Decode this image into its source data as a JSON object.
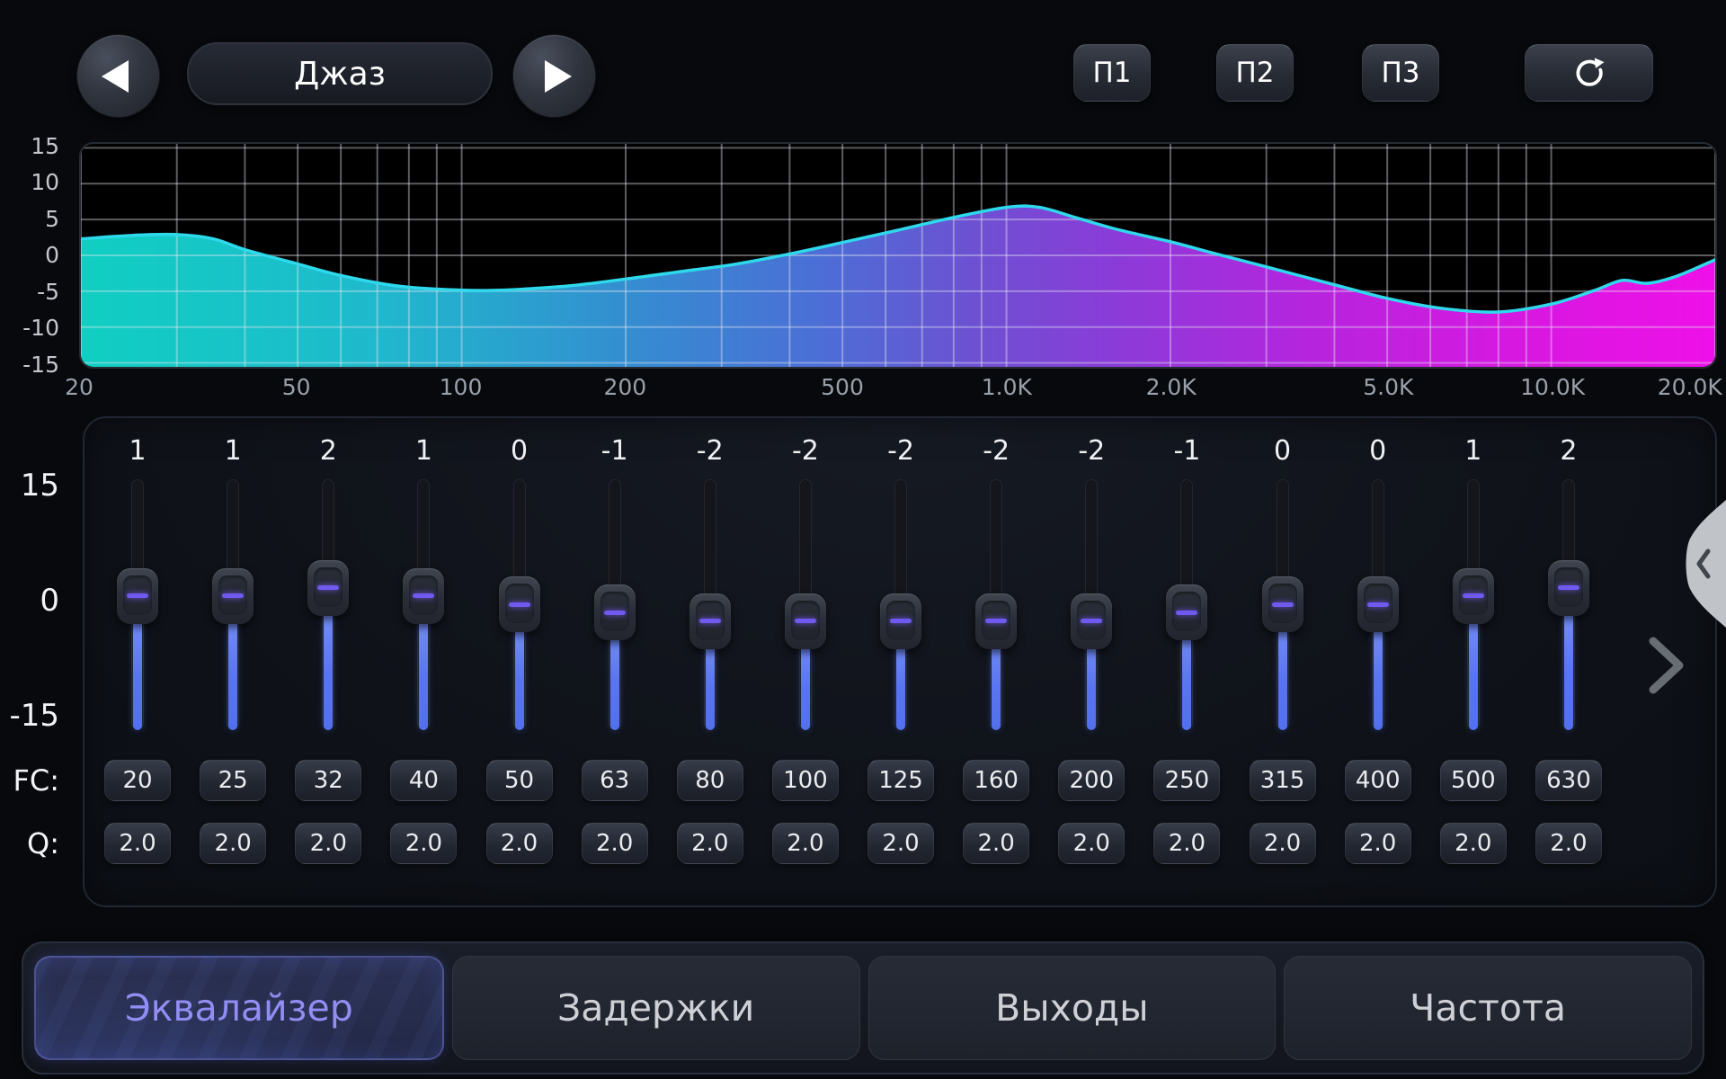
{
  "header": {
    "preset_label": "Джаз",
    "prev_button": {
      "icon": "left-triangle-icon"
    },
    "next_button": {
      "icon": "right-triangle-icon"
    },
    "memory_buttons": [
      {
        "label": "П1"
      },
      {
        "label": "П2"
      },
      {
        "label": "П3"
      }
    ],
    "reset_button": {
      "icon": "reset-arrow-icon"
    }
  },
  "chart_data": {
    "type": "area",
    "title": "",
    "x_scale": "log",
    "xlim": [
      20,
      20000
    ],
    "ylim": [
      -15,
      15
    ],
    "grid": true,
    "y_ticks": [
      {
        "value": 15,
        "label": "15"
      },
      {
        "value": 10,
        "label": "10"
      },
      {
        "value": 5,
        "label": "5"
      },
      {
        "value": 0,
        "label": "0"
      },
      {
        "value": -5,
        "label": "-5"
      },
      {
        "value": -10,
        "label": "-10"
      },
      {
        "value": -15,
        "label": "-15"
      }
    ],
    "x_ticks": [
      {
        "f": 20,
        "label": "20"
      },
      {
        "f": 50,
        "label": "50"
      },
      {
        "f": 100,
        "label": "100"
      },
      {
        "f": 200,
        "label": "200"
      },
      {
        "f": 500,
        "label": "500"
      },
      {
        "f": 1000,
        "label": "1.0K"
      },
      {
        "f": 2000,
        "label": "2.0K"
      },
      {
        "f": 5000,
        "label": "5.0K"
      },
      {
        "f": 10000,
        "label": "10.0K"
      },
      {
        "f": 20000,
        "label": "20.0K"
      }
    ],
    "minor_gridlines": [
      20,
      30,
      40,
      50,
      60,
      70,
      80,
      90,
      100,
      200,
      300,
      400,
      500,
      600,
      700,
      800,
      900,
      1000,
      2000,
      3000,
      4000,
      5000,
      6000,
      7000,
      8000,
      9000,
      10000,
      20000
    ],
    "curve_db_by_freq": [
      [
        20,
        2.3
      ],
      [
        25,
        2.8
      ],
      [
        30,
        2.9
      ],
      [
        35,
        2.3
      ],
      [
        40,
        0.8
      ],
      [
        50,
        -1.2
      ],
      [
        60,
        -2.8
      ],
      [
        75,
        -4.2
      ],
      [
        90,
        -4.7
      ],
      [
        110,
        -4.9
      ],
      [
        130,
        -4.7
      ],
      [
        160,
        -4.2
      ],
      [
        200,
        -3.3
      ],
      [
        250,
        -2.3
      ],
      [
        320,
        -1.2
      ],
      [
        400,
        0.2
      ],
      [
        500,
        1.8
      ],
      [
        630,
        3.5
      ],
      [
        800,
        5.3
      ],
      [
        1000,
        6.7
      ],
      [
        1150,
        6.7
      ],
      [
        1350,
        5.2
      ],
      [
        1600,
        3.6
      ],
      [
        2000,
        1.9
      ],
      [
        2400,
        0.3
      ],
      [
        3000,
        -1.6
      ],
      [
        4000,
        -4.1
      ],
      [
        5000,
        -6.0
      ],
      [
        6300,
        -7.4
      ],
      [
        8000,
        -7.9
      ],
      [
        10000,
        -6.8
      ],
      [
        12000,
        -4.9
      ],
      [
        13500,
        -3.5
      ],
      [
        15000,
        -3.9
      ],
      [
        17000,
        -2.9
      ],
      [
        20000,
        -0.6
      ]
    ],
    "colors": {
      "stroke": "#2fd9ec",
      "grid": "rgba(230,233,240,0.40)",
      "fill_gradient": [
        [
          "0",
          "#10cfc2"
        ],
        [
          "0.18",
          "#1fb9cd"
        ],
        [
          "0.33",
          "#338fd0"
        ],
        [
          "0.45",
          "#4b6fd6"
        ],
        [
          "0.55",
          "#6e50d2"
        ],
        [
          "0.63",
          "#8a3cd8"
        ],
        [
          "0.75",
          "#b525de"
        ],
        [
          "0.88",
          "#d718e0"
        ],
        [
          "1",
          "#ee10e8"
        ]
      ]
    }
  },
  "equalizer": {
    "gain_scale_labels": [
      "15",
      "0",
      "-15"
    ],
    "gain_range": [
      -15,
      15
    ],
    "fc_row_label": "FC:",
    "q_row_label": "Q:",
    "bands": [
      {
        "gain": 1,
        "fc": "20",
        "q": "2.0"
      },
      {
        "gain": 1,
        "fc": "25",
        "q": "2.0"
      },
      {
        "gain": 2,
        "fc": "32",
        "q": "2.0"
      },
      {
        "gain": 1,
        "fc": "40",
        "q": "2.0"
      },
      {
        "gain": 0,
        "fc": "50",
        "q": "2.0"
      },
      {
        "gain": -1,
        "fc": "63",
        "q": "2.0"
      },
      {
        "gain": -2,
        "fc": "80",
        "q": "2.0"
      },
      {
        "gain": -2,
        "fc": "100",
        "q": "2.0"
      },
      {
        "gain": -2,
        "fc": "125",
        "q": "2.0"
      },
      {
        "gain": -2,
        "fc": "160",
        "q": "2.0"
      },
      {
        "gain": -2,
        "fc": "200",
        "q": "2.0"
      },
      {
        "gain": -1,
        "fc": "250",
        "q": "2.0"
      },
      {
        "gain": 0,
        "fc": "315",
        "q": "2.0"
      },
      {
        "gain": 0,
        "fc": "400",
        "q": "2.0"
      },
      {
        "gain": 1,
        "fc": "500",
        "q": "2.0"
      },
      {
        "gain": 2,
        "fc": "630",
        "q": "2.0"
      }
    ]
  },
  "side_panel": {
    "next_page_icon": "chevron-right-icon",
    "drawer_handle_icon": "chevron-left-icon"
  },
  "tabs": [
    {
      "label": "Эквалайзер",
      "active": true
    },
    {
      "label": "Задержки",
      "active": false
    },
    {
      "label": "Выходы",
      "active": false
    },
    {
      "label": "Частота",
      "active": false
    }
  ],
  "colors": {
    "slider_fill": "#5974f0",
    "handle_dash": "#7059ef",
    "active_tab_text": "#918df3",
    "panel_border": "#202633",
    "background": "#07090d"
  }
}
